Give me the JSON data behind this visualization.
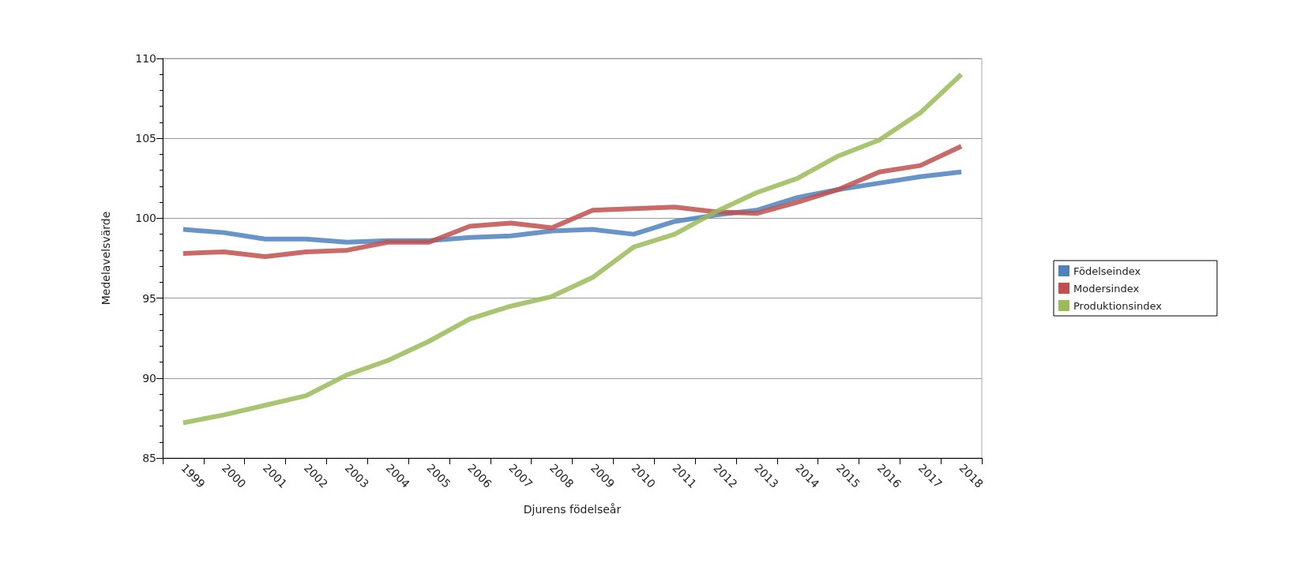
{
  "chart_data": {
    "type": "line",
    "xlabel": "Djurens födelseår",
    "ylabel": "Medelavelsvärde",
    "categories": [
      "1999",
      "2000",
      "2001",
      "2002",
      "2003",
      "2004",
      "2005",
      "2006",
      "2007",
      "2008",
      "2009",
      "2010",
      "2011",
      "2012",
      "2013",
      "2014",
      "2015",
      "2016",
      "2017",
      "2018"
    ],
    "series": [
      {
        "name": "Födelseindex",
        "color": "#4f81bd",
        "values": [
          99.3,
          99.1,
          98.7,
          98.7,
          98.5,
          98.6,
          98.6,
          98.8,
          98.9,
          99.2,
          99.3,
          99.0,
          99.8,
          100.2,
          100.5,
          101.3,
          101.8,
          102.2,
          102.6,
          102.9
        ]
      },
      {
        "name": "Modersindex",
        "color": "#c0504d",
        "values": [
          97.8,
          97.9,
          97.6,
          97.9,
          98.0,
          98.5,
          98.5,
          99.5,
          99.7,
          99.4,
          100.5,
          100.6,
          100.7,
          100.4,
          100.3,
          101.0,
          101.8,
          102.9,
          103.3,
          104.5
        ]
      },
      {
        "name": "Produktionsindex",
        "color": "#9bbb59",
        "values": [
          87.2,
          87.7,
          88.3,
          88.9,
          90.2,
          91.1,
          92.3,
          93.7,
          94.5,
          95.1,
          96.3,
          98.2,
          99.0,
          100.4,
          101.6,
          102.5,
          103.9,
          104.9,
          106.6,
          109.0
        ]
      }
    ],
    "ylim": [
      85,
      110
    ],
    "yticks": [
      85,
      90,
      95,
      100,
      105,
      110
    ],
    "grid": "y",
    "legend": "right",
    "marker": "none",
    "line_style": "solid"
  }
}
